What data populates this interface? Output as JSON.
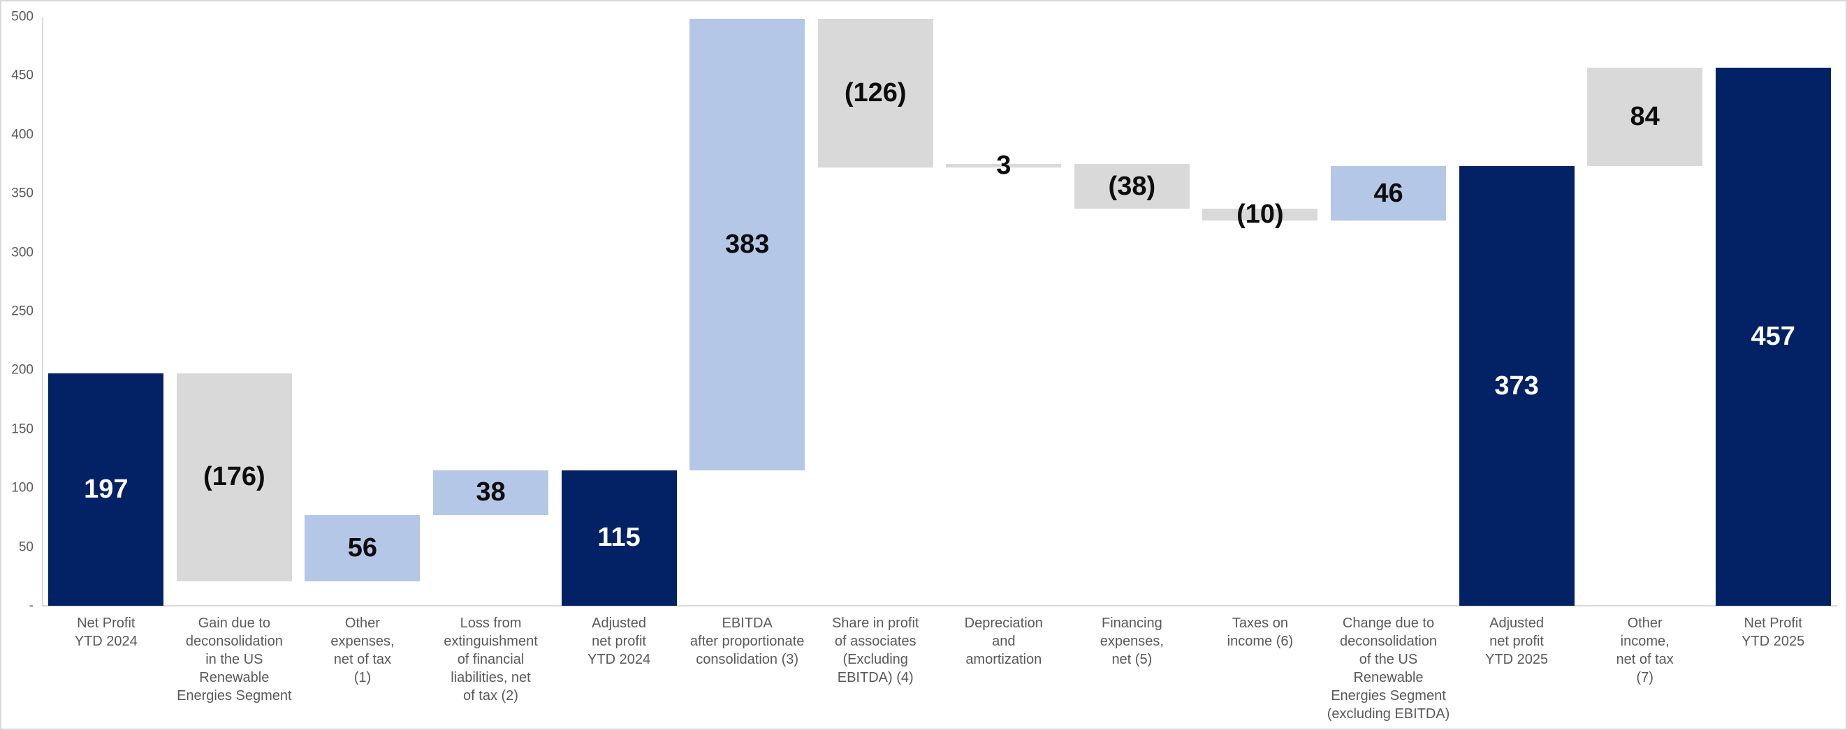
{
  "chart_data": {
    "type": "bar",
    "subtype": "waterfall",
    "title": "",
    "xlabel": "",
    "ylabel": "",
    "ylim": [
      0,
      500
    ],
    "y_tick_interval": 50,
    "y_ticks": [
      {
        "value": 500,
        "label": "500"
      },
      {
        "value": 450,
        "label": "450"
      },
      {
        "value": 400,
        "label": "400"
      },
      {
        "value": 350,
        "label": "350"
      },
      {
        "value": 300,
        "label": "300"
      },
      {
        "value": 250,
        "label": "250"
      },
      {
        "value": 200,
        "label": "200"
      },
      {
        "value": 150,
        "label": "150"
      },
      {
        "value": 100,
        "label": "100"
      },
      {
        "value": 50,
        "label": "50"
      },
      {
        "value": 0,
        "label": "-"
      }
    ],
    "grid": false,
    "legend": false,
    "bars": [
      {
        "name": "net-profit-ytd-2024",
        "category": "Net Profit\nYTD 2024",
        "start": 0,
        "end": 197,
        "value": 197,
        "label": "197",
        "color": "navy",
        "label_color": "white"
      },
      {
        "name": "gain-deconsolidation-us-renewable",
        "category": "Gain due to\ndeconsolidation\nin the US\nRenewable\nEnergies Segment",
        "start": 197,
        "end": 21,
        "value": -176,
        "label": "(176)",
        "color": "gray",
        "label_color": "black"
      },
      {
        "name": "other-expenses-net-of-tax-1",
        "category": "Other\nexpenses,\nnet of tax\n(1)",
        "start": 21,
        "end": 77,
        "value": 56,
        "label": "56",
        "color": "lightblue",
        "label_color": "black"
      },
      {
        "name": "loss-extinguishment-liabilities-2",
        "category": "Loss from\nextinguishment\nof financial\nliabilities, net\nof tax (2)",
        "start": 77,
        "end": 115,
        "value": 38,
        "label": "38",
        "color": "lightblue",
        "label_color": "black"
      },
      {
        "name": "adjusted-net-profit-ytd-2024",
        "category": "Adjusted\nnet profit\nYTD 2024",
        "start": 0,
        "end": 115,
        "value": 115,
        "label": "115",
        "color": "navy",
        "label_color": "white"
      },
      {
        "name": "ebitda-proportionate-consolidation-3",
        "category": "EBITDA\nafter proportionate\nconsolidation (3)",
        "start": 115,
        "end": 498,
        "value": 383,
        "label": "383",
        "color": "lightblue",
        "label_color": "black"
      },
      {
        "name": "share-profit-associates-4",
        "category": "Share in profit\nof associates\n(Excluding\nEBITDA) (4)",
        "start": 498,
        "end": 372,
        "value": -126,
        "label": "(126)",
        "color": "gray",
        "label_color": "black"
      },
      {
        "name": "depreciation-amortization",
        "category": "Depreciation\nand\namortization",
        "start": 372,
        "end": 375,
        "value": 3,
        "label": "3",
        "color": "gray",
        "label_color": "black"
      },
      {
        "name": "financing-expenses-net-5",
        "category": "Financing\nexpenses,\nnet (5)",
        "start": 375,
        "end": 337,
        "value": -38,
        "label": "(38)",
        "color": "gray",
        "label_color": "black"
      },
      {
        "name": "taxes-on-income-6",
        "category": "Taxes on\nincome (6)",
        "start": 337,
        "end": 327,
        "value": -10,
        "label": "(10)",
        "color": "gray",
        "label_color": "black"
      },
      {
        "name": "change-deconsolidation-us-renewable",
        "category": "Change due to\ndeconsolidation\nof the US\nRenewable\nEnergies Segment\n(excluding EBITDA)",
        "start": 327,
        "end": 373,
        "value": 46,
        "label": "46",
        "color": "lightblue",
        "label_color": "black"
      },
      {
        "name": "adjusted-net-profit-ytd-2025",
        "category": "Adjusted\nnet profit\nYTD 2025",
        "start": 0,
        "end": 373,
        "value": 373,
        "label": "373",
        "color": "navy",
        "label_color": "white"
      },
      {
        "name": "other-income-net-of-tax-7",
        "category": "Other\nincome,\nnet of tax\n(7)",
        "start": 373,
        "end": 457,
        "value": 84,
        "label": "84",
        "color": "gray",
        "label_color": "black"
      },
      {
        "name": "net-profit-ytd-2025",
        "category": "Net Profit\nYTD 2025",
        "start": 0,
        "end": 457,
        "value": 457,
        "label": "457",
        "color": "navy",
        "label_color": "white"
      }
    ],
    "colors": {
      "navy": "#032266",
      "lightblue": "#b4c7e7",
      "gray": "#d9d9d9",
      "axis_line": "#d9d9d9",
      "tick_text": "#595959",
      "label_black": "#0d0d0d",
      "label_white": "#ffffff"
    }
  }
}
